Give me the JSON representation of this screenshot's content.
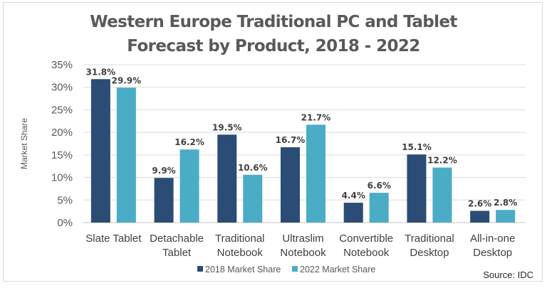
{
  "chart_data": {
    "type": "bar",
    "title_lines": [
      "Western Europe Traditional PC and Tablet",
      "Forecast by Product, 2018 - 2022"
    ],
    "xlabel": "",
    "ylabel": "Market Share",
    "ylim": [
      0,
      35
    ],
    "yticks": [
      0,
      5,
      10,
      15,
      20,
      25,
      30,
      35
    ],
    "ytick_labels": [
      "0%",
      "5%",
      "10%",
      "15%",
      "20%",
      "25%",
      "30%",
      "35%"
    ],
    "grid": true,
    "categories": [
      [
        "Slate Tablet"
      ],
      [
        "Detachable",
        "Tablet"
      ],
      [
        "Traditional",
        "Notebook"
      ],
      [
        "Ultraslim",
        "Notebook"
      ],
      [
        "Convertible",
        "Notebook"
      ],
      [
        "Traditional",
        "Desktop"
      ],
      [
        "All-in-one",
        "Desktop"
      ]
    ],
    "series": [
      {
        "name": "2018 Market Share",
        "color": "#2b4c75",
        "values": [
          31.8,
          9.9,
          19.5,
          16.7,
          4.4,
          15.1,
          2.6
        ],
        "labels": [
          "31.8%",
          "9.9%",
          "19.5%",
          "16.7%",
          "4.4%",
          "15.1%",
          "2.6%"
        ]
      },
      {
        "name": "2022 Market Share",
        "color": "#4bacc6",
        "values": [
          29.9,
          16.2,
          10.6,
          21.7,
          6.6,
          12.2,
          2.8
        ],
        "labels": [
          "29.9%",
          "16.2%",
          "10.6%",
          "21.7%",
          "6.6%",
          "12.2%",
          "2.8%"
        ]
      }
    ],
    "legend_position": "bottom",
    "annotation": "Source: IDC"
  }
}
